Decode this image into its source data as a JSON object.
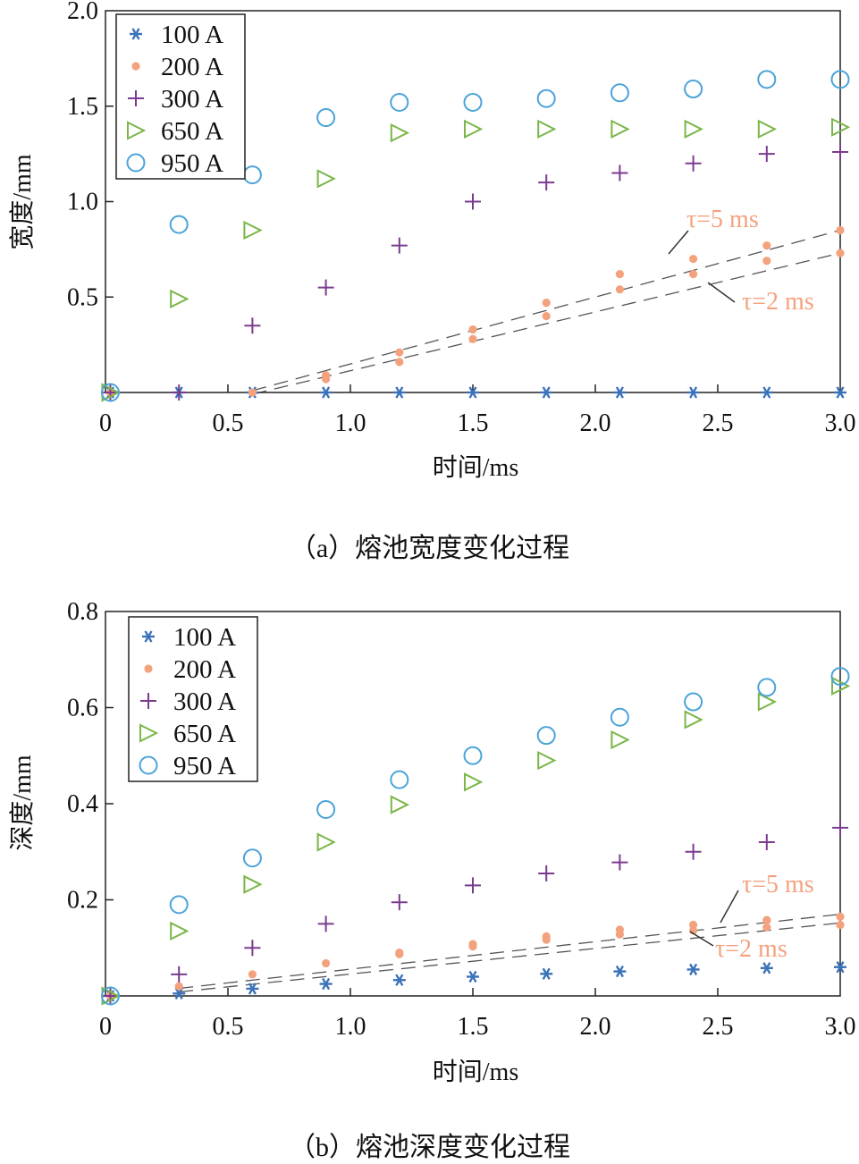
{
  "captions": [
    "（a）熔池宽度变化过程",
    "（b）熔池深度变化过程"
  ],
  "annotations": [
    "τ=5 ms",
    "τ=2 ms"
  ],
  "chart_data": [
    {
      "type": "scatter",
      "xlabel": "时间/ms",
      "ylabel": "宽度/mm",
      "xlim": [
        0,
        3.0
      ],
      "ylim": [
        0,
        2.0
      ],
      "xticks": [
        "0",
        "0.5",
        "1.0",
        "1.5",
        "2.0",
        "2.5",
        "3.0"
      ],
      "yticks": [
        "0.5",
        "1.0",
        "1.5",
        "2.0"
      ],
      "legend_position": "top-left",
      "series": [
        {
          "name": "100 A",
          "marker": "asterisk",
          "color": "#3b72b8",
          "x": [
            0.02,
            0.3,
            0.6,
            0.9,
            1.2,
            1.5,
            1.8,
            2.1,
            2.4,
            2.7,
            3.0
          ],
          "y": [
            0,
            0,
            0,
            0,
            0,
            0,
            0,
            0,
            0,
            0,
            0
          ]
        },
        {
          "name": "200 A",
          "marker": "dot",
          "color": "#f4a27e",
          "x": [
            0.02,
            0.6,
            0.9,
            0.9,
            1.2,
            1.2,
            1.5,
            1.5,
            1.8,
            1.8,
            2.1,
            2.1,
            2.4,
            2.4,
            2.7,
            2.7,
            3.0,
            3.0
          ],
          "y": [
            0,
            0,
            0.09,
            0.07,
            0.21,
            0.16,
            0.33,
            0.28,
            0.47,
            0.4,
            0.62,
            0.54,
            0.7,
            0.62,
            0.77,
            0.69,
            0.85,
            0.73
          ]
        },
        {
          "name": "300 A",
          "marker": "plus",
          "color": "#7a3b8f",
          "x": [
            0.02,
            0.3,
            0.6,
            0.9,
            1.2,
            1.5,
            1.8,
            2.1,
            2.4,
            2.7,
            3.0
          ],
          "y": [
            0,
            0,
            0.35,
            0.55,
            0.77,
            1.0,
            1.1,
            1.15,
            1.2,
            1.25,
            1.26
          ]
        },
        {
          "name": "650 A",
          "marker": "triangle-right",
          "color": "#7ab648",
          "x": [
            0.02,
            0.3,
            0.6,
            0.9,
            1.2,
            1.5,
            1.8,
            2.1,
            2.4,
            2.7,
            3.0
          ],
          "y": [
            0,
            0.49,
            0.85,
            1.12,
            1.36,
            1.38,
            1.38,
            1.38,
            1.38,
            1.38,
            1.39
          ]
        },
        {
          "name": "950 A",
          "marker": "circle",
          "color": "#4aa3d9",
          "x": [
            0.02,
            0.3,
            0.6,
            0.9,
            1.2,
            1.5,
            1.8,
            2.1,
            2.4,
            2.7,
            3.0
          ],
          "y": [
            0,
            0.88,
            1.14,
            1.44,
            1.52,
            1.52,
            1.54,
            1.57,
            1.59,
            1.64,
            1.64
          ]
        }
      ],
      "fit_lines": [
        {
          "label": "τ=5 ms",
          "x": [
            0.6,
            3.0
          ],
          "y": [
            0,
            0.85
          ]
        },
        {
          "label": "τ=2 ms",
          "x": [
            0.6,
            3.0
          ],
          "y": [
            0,
            0.73
          ]
        }
      ]
    },
    {
      "type": "scatter",
      "xlabel": "时间/ms",
      "ylabel": "深度/mm",
      "xlim": [
        0,
        3.0
      ],
      "ylim": [
        0,
        0.8
      ],
      "xticks": [
        "0",
        "0.5",
        "1.0",
        "1.5",
        "2.0",
        "2.5",
        "3.0"
      ],
      "yticks": [
        "0.2",
        "0.4",
        "0.6",
        "0.8"
      ],
      "legend_position": "top-left",
      "series": [
        {
          "name": "100 A",
          "marker": "asterisk",
          "color": "#3b72b8",
          "x": [
            0.02,
            0.3,
            0.6,
            0.9,
            1.2,
            1.5,
            1.8,
            2.1,
            2.4,
            2.7,
            3.0
          ],
          "y": [
            0,
            0.005,
            0.015,
            0.025,
            0.033,
            0.04,
            0.046,
            0.051,
            0.055,
            0.058,
            0.06
          ]
        },
        {
          "name": "200 A",
          "marker": "dot",
          "color": "#f4a27e",
          "x": [
            0.02,
            0.3,
            0.6,
            0.9,
            1.2,
            1.2,
            1.5,
            1.5,
            1.8,
            1.8,
            2.1,
            2.1,
            2.4,
            2.4,
            2.7,
            2.7,
            3.0,
            3.0
          ],
          "y": [
            0,
            0.02,
            0.045,
            0.068,
            0.09,
            0.087,
            0.108,
            0.103,
            0.124,
            0.117,
            0.138,
            0.128,
            0.148,
            0.136,
            0.158,
            0.143,
            0.165,
            0.148
          ]
        },
        {
          "name": "300 A",
          "marker": "plus",
          "color": "#7a3b8f",
          "x": [
            0.02,
            0.3,
            0.6,
            0.9,
            1.2,
            1.5,
            1.8,
            2.1,
            2.4,
            2.7,
            3.0
          ],
          "y": [
            0,
            0.045,
            0.1,
            0.15,
            0.195,
            0.23,
            0.255,
            0.278,
            0.3,
            0.32,
            0.35
          ]
        },
        {
          "name": "650 A",
          "marker": "triangle-right",
          "color": "#7ab648",
          "x": [
            0.02,
            0.3,
            0.6,
            0.9,
            1.2,
            1.5,
            1.8,
            2.1,
            2.4,
            2.7,
            3.0
          ],
          "y": [
            0,
            0.135,
            0.232,
            0.32,
            0.398,
            0.445,
            0.49,
            0.533,
            0.575,
            0.612,
            0.645
          ]
        },
        {
          "name": "950 A",
          "marker": "circle",
          "color": "#4aa3d9",
          "x": [
            0.02,
            0.3,
            0.6,
            0.9,
            1.2,
            1.5,
            1.8,
            2.1,
            2.4,
            2.7,
            3.0
          ],
          "y": [
            0,
            0.19,
            0.287,
            0.388,
            0.45,
            0.5,
            0.542,
            0.58,
            0.612,
            0.642,
            0.665
          ]
        }
      ],
      "fit_lines": [
        {
          "label": "τ=5 ms",
          "x": [
            0.3,
            3.0
          ],
          "y": [
            0.012,
            0.17
          ]
        },
        {
          "label": "τ=2 ms",
          "x": [
            0.3,
            3.0
          ],
          "y": [
            0.012,
            0.152
          ]
        }
      ]
    }
  ]
}
